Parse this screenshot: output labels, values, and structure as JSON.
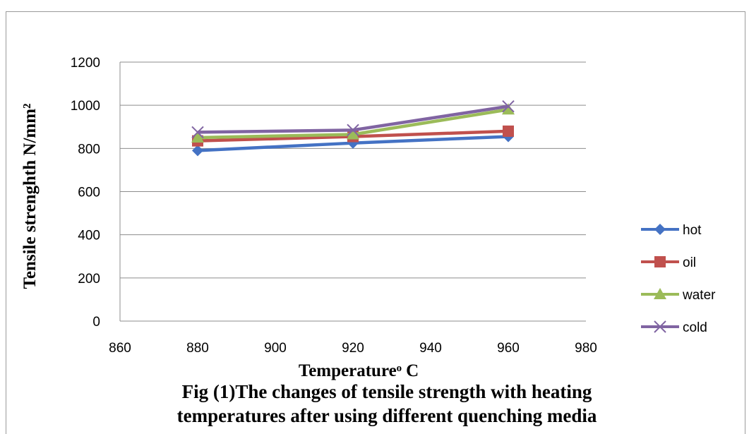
{
  "chart_data": {
    "type": "line",
    "x": [
      880,
      920,
      960
    ],
    "series": [
      {
        "name": "hot",
        "color": "#4472C4",
        "marker": "diamond",
        "values": [
          790,
          825,
          855
        ]
      },
      {
        "name": "oil",
        "color": "#C0504D",
        "marker": "square",
        "values": [
          835,
          855,
          880
        ]
      },
      {
        "name": "water",
        "color": "#9BBB59",
        "marker": "triangle",
        "values": [
          850,
          865,
          980
        ]
      },
      {
        "name": "cold",
        "color": "#8064A2",
        "marker": "x",
        "values": [
          875,
          885,
          995
        ]
      }
    ],
    "xlim": [
      860,
      980
    ],
    "ylim": [
      0,
      1200
    ],
    "xticks": [
      860,
      880,
      900,
      920,
      940,
      960,
      980
    ],
    "yticks": [
      0,
      200,
      400,
      600,
      800,
      1000,
      1200
    ],
    "xlabel": "Temperatureᵒ C",
    "ylabel": "Tensile strenghth N/mm²",
    "grid": "horizontal",
    "legend_position": "right",
    "caption_lines": [
      "Fig (1)The changes of tensile strength with heating",
      "temperatures after using different quenching media"
    ]
  }
}
